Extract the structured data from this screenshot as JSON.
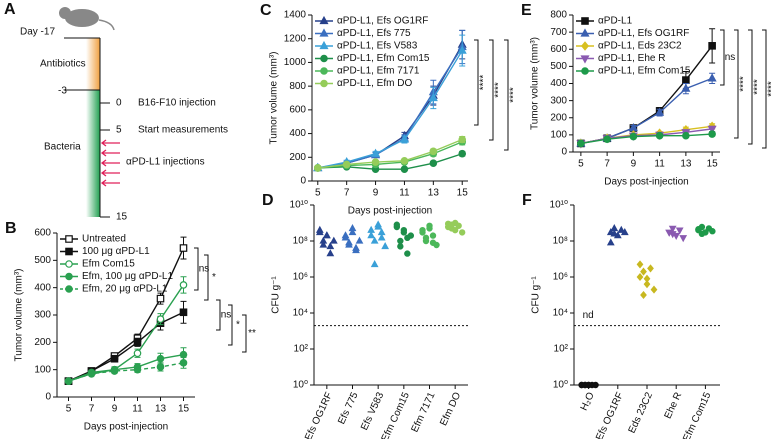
{
  "timeline": {
    "panel": "A",
    "day_start": "Day -17",
    "antibiotics": "Antibiotics",
    "day_minus3": "-3",
    "bacteria": "Bacteria",
    "events": [
      {
        "day": "0",
        "label": "B16-F10 injection"
      },
      {
        "day": "5",
        "label": "Start measurements"
      },
      {
        "day": "15"
      }
    ],
    "injections": "αPD-L1 injections"
  },
  "chart_data": [
    {
      "panel": "B",
      "type": "line",
      "x": [
        5,
        7,
        9,
        11,
        13,
        15
      ],
      "xlim": [
        4,
        16
      ],
      "xticks": [
        5,
        7,
        9,
        11,
        13,
        15
      ],
      "ylim": [
        0,
        600
      ],
      "yticks": [
        0,
        100,
        200,
        300,
        400,
        500,
        600
      ],
      "xlabel": "Days post-injection",
      "ylabel": "Tumor volume (mm³)",
      "legend": "upper left",
      "series": [
        {
          "name": "Untreated",
          "color": "#111111",
          "marker": "square",
          "open": true,
          "values": [
            58,
            95,
            150,
            215,
            360,
            545
          ],
          "errors": [
            5,
            8,
            10,
            15,
            20,
            40
          ]
        },
        {
          "name": "100 μg αPD-L1",
          "color": "#111111",
          "marker": "square",
          "values": [
            58,
            95,
            140,
            200,
            270,
            310
          ],
          "errors": [
            5,
            8,
            12,
            15,
            25,
            40
          ]
        },
        {
          "name": "Efm Com15",
          "color": "#2aa050",
          "marker": "circle",
          "open": true,
          "values": [
            58,
            85,
            100,
            160,
            285,
            410
          ],
          "errors": [
            5,
            8,
            10,
            15,
            20,
            30
          ]
        },
        {
          "name": "Efm, 100 μg αPD-L1",
          "color": "#2aa050",
          "marker": "circle",
          "values": [
            58,
            90,
            100,
            110,
            140,
            155
          ],
          "errors": [
            5,
            8,
            10,
            12,
            20,
            25
          ]
        },
        {
          "name": "Efm, 20 μg αPD-L1",
          "color": "#2aa050",
          "marker": "circle",
          "dashed": true,
          "values": [
            58,
            85,
            95,
            100,
            110,
            125
          ],
          "errors": [
            5,
            8,
            8,
            10,
            15,
            20
          ]
        }
      ],
      "annotations": [
        "ns",
        "*",
        "ns",
        "*",
        "**"
      ]
    },
    {
      "panel": "C",
      "type": "line",
      "x": [
        5,
        7,
        9,
        11,
        13,
        15
      ],
      "xlim": [
        4.6,
        15.4
      ],
      "xticks": [
        5,
        7,
        9,
        11,
        13,
        15
      ],
      "ylim": [
        0,
        1400
      ],
      "yticks": [
        0,
        200,
        400,
        600,
        800,
        1000,
        1200,
        1400
      ],
      "xlabel": "Days post-injection",
      "ylabel": "Tumor volume (mm³)",
      "legend": "upper left",
      "series": [
        {
          "name": "αPD-L1, Efs OG1RF",
          "color": "#27408b",
          "marker": "triangle",
          "values": [
            110,
            150,
            220,
            380,
            720,
            1150
          ],
          "errors": [
            10,
            15,
            20,
            30,
            80,
            120
          ]
        },
        {
          "name": "αPD-L1, Efs 775",
          "color": "#3a6fc0",
          "marker": "triangle",
          "values": [
            110,
            150,
            220,
            360,
            750,
            1130
          ],
          "errors": [
            10,
            15,
            20,
            30,
            100,
            140
          ]
        },
        {
          "name": "αPD-L1, Efs V583",
          "color": "#3aa0d8",
          "marker": "triangle",
          "values": [
            110,
            160,
            230,
            350,
            700,
            1100
          ],
          "errors": [
            10,
            15,
            20,
            30,
            90,
            130
          ]
        },
        {
          "name": "αPD-L1, Efm Com15",
          "color": "#1e8f4a",
          "marker": "circle",
          "values": [
            110,
            120,
            100,
            100,
            150,
            230
          ],
          "errors": [
            10,
            10,
            10,
            10,
            15,
            20
          ]
        },
        {
          "name": "αPD-L1, Efm 7171",
          "color": "#4cb85a",
          "marker": "circle",
          "values": [
            110,
            130,
            140,
            160,
            230,
            330
          ],
          "errors": [
            10,
            10,
            10,
            15,
            20,
            25
          ]
        },
        {
          "name": "αPD-L1, Efm DO",
          "color": "#95cc5a",
          "marker": "circle",
          "values": [
            110,
            140,
            160,
            170,
            250,
            350
          ],
          "errors": [
            10,
            10,
            10,
            15,
            20,
            25
          ]
        }
      ],
      "annotations": [
        "****",
        "****",
        "****"
      ]
    },
    {
      "panel": "D",
      "type": "strip",
      "log_scale": true,
      "ylim": [
        1,
        10000000000
      ],
      "ylabel": "CFU g⁻¹",
      "yticks": [
        {
          "value": 1,
          "label": "10⁰"
        },
        {
          "value": 100,
          "label": "10²"
        },
        {
          "value": 10000,
          "label": "10⁴"
        },
        {
          "value": 1000000,
          "label": "10⁶"
        },
        {
          "value": 100000000,
          "label": "10⁸"
        },
        {
          "value": 10000000000,
          "label": "10¹⁰"
        }
      ],
      "detection_limit": 2000,
      "categories": [
        "Efs OG1RF",
        "Efs 775",
        "Efs V583",
        "Efm Com15",
        "Efm 7171",
        "Efm DO"
      ],
      "colors": [
        "#27408b",
        "#3a6fc0",
        "#3aa0d8",
        "#1e8f4a",
        "#4cb85a",
        "#95cc5a"
      ],
      "markers": [
        "triangle",
        "triangle",
        "triangle",
        "circle",
        "circle",
        "circle"
      ],
      "values": [
        [
          300000000,
          100000000,
          200000000,
          50000000,
          100000000,
          400000000,
          60000000,
          200000000,
          20000000
        ],
        [
          200000000,
          80000000,
          300000000,
          40000000,
          100000000,
          150000000,
          60000000,
          500000000,
          30000000
        ],
        [
          400000000,
          100000000,
          600000000,
          300000000,
          50000000,
          200000000,
          5000000,
          800000000,
          150000000
        ],
        [
          600000000,
          100000000,
          300000000,
          20000000,
          200000000,
          800000000,
          50000000,
          400000000,
          150000000
        ],
        [
          300000000,
          100000000,
          500000000,
          200000000,
          60000000,
          400000000,
          150000000,
          700000000,
          80000000
        ],
        [
          900000000,
          500000000,
          1000000000,
          700000000,
          300000000,
          600000000,
          800000000,
          400000000
        ]
      ]
    },
    {
      "panel": "E",
      "type": "line",
      "x": [
        5,
        7,
        9,
        11,
        13,
        15
      ],
      "xlim": [
        4.4,
        15.6
      ],
      "xticks": [
        5,
        7,
        9,
        11,
        13,
        15
      ],
      "ylim": [
        0,
        800
      ],
      "yticks": [
        0,
        100,
        200,
        300,
        400,
        500,
        600,
        700,
        800
      ],
      "xlabel": "Days post-injection",
      "ylabel": "Tumor volume (mm³)",
      "legend": "upper left",
      "series": [
        {
          "name": "αPD-L1",
          "color": "#111111",
          "marker": "square",
          "values": [
            50,
            80,
            140,
            240,
            420,
            620
          ],
          "errors": [
            8,
            10,
            15,
            20,
            50,
            100
          ]
        },
        {
          "name": "αPD-L1, Efs OG1RF",
          "color": "#3a5fb0",
          "marker": "triangle",
          "values": [
            50,
            80,
            140,
            230,
            370,
            430
          ],
          "errors": [
            8,
            10,
            15,
            20,
            30,
            30
          ]
        },
        {
          "name": "αPD-L1, Eds 23C2",
          "color": "#d8c020",
          "marker": "diamond",
          "values": [
            50,
            80,
            100,
            110,
            130,
            150
          ],
          "errors": [
            8,
            10,
            10,
            10,
            15,
            15
          ]
        },
        {
          "name": "αPD-L1, Ehe R",
          "color": "#8a5ab0",
          "marker": "triangle-down",
          "values": [
            50,
            80,
            95,
            100,
            115,
            135
          ],
          "errors": [
            8,
            10,
            10,
            10,
            12,
            15
          ]
        },
        {
          "name": "αPD-L1, Efm Com15",
          "color": "#1e9a4a",
          "marker": "circle",
          "values": [
            50,
            75,
            90,
            95,
            95,
            105
          ],
          "errors": [
            8,
            10,
            10,
            10,
            10,
            12
          ]
        }
      ],
      "annotations": [
        "ns",
        "****",
        "****",
        "****"
      ]
    },
    {
      "panel": "F",
      "type": "strip",
      "log_scale": true,
      "ylim": [
        1,
        10000000000
      ],
      "ylabel": "CFU g⁻¹",
      "yticks": [
        {
          "value": 1,
          "label": "10⁰"
        },
        {
          "value": 100,
          "label": "10²"
        },
        {
          "value": 10000,
          "label": "10⁴"
        },
        {
          "value": 1000000,
          "label": "10⁶"
        },
        {
          "value": 100000000,
          "label": "10⁸"
        },
        {
          "value": 10000000000,
          "label": "10¹⁰"
        }
      ],
      "detection_limit": 2000,
      "annotations": [
        "nd"
      ],
      "categories": [
        "H₂O",
        "Efs OG1RF",
        "Eds 23C2",
        "Ehe R",
        "Efm Com15"
      ],
      "colors": [
        "#111111",
        "#27408b",
        "#c8b820",
        "#8a5ab0",
        "#1e9a4a"
      ],
      "markers": [
        "circle",
        "triangle",
        "diamond",
        "triangle-down",
        "circle"
      ],
      "values": [
        [
          1,
          1,
          1,
          1,
          1,
          1,
          1,
          1
        ],
        [
          300000000,
          500000000,
          200000000,
          400000000,
          300000000,
          80000000,
          250000000
        ],
        [
          5000000,
          2000000,
          800000,
          3000000,
          200000,
          1000000,
          100000,
          400000
        ],
        [
          300000000,
          500000000,
          200000000,
          400000000,
          150000000,
          300000000,
          250000000
        ],
        [
          400000000,
          600000000,
          300000000,
          500000000,
          350000000,
          450000000,
          250000000
        ]
      ]
    }
  ]
}
